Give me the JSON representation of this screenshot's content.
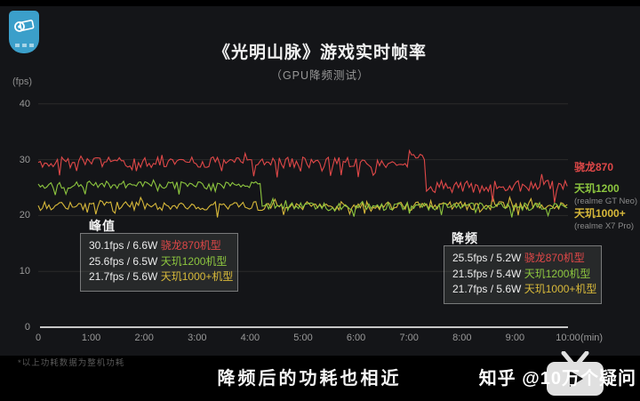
{
  "badge": {
    "icon": "camera-icon",
    "color": "#3b9fca"
  },
  "title": "《光明山脉》游戏实时帧率",
  "subtitle": "（GPU降频测试）",
  "axis": {
    "y_unit": "(fps)",
    "x_unit": "(min)"
  },
  "legend": [
    {
      "label": "骁龙870",
      "sub": "",
      "color": "#e04848"
    },
    {
      "label": "天玑1200",
      "sub": "(realme GT Neo)",
      "color": "#8dc63f"
    },
    {
      "label": "天玑1000+",
      "sub": "(realme X7 Pro)",
      "color": "#d8b93a"
    }
  ],
  "annotations": {
    "peak": {
      "title": "峰值",
      "rows": [
        {
          "metrics": "30.1fps / 6.6W ",
          "chip": "骁龙870机型",
          "color": "#e04848"
        },
        {
          "metrics": "25.6fps / 6.5W ",
          "chip": "天玑1200机型",
          "color": "#8dc63f"
        },
        {
          "metrics": "21.7fps / 5.6W ",
          "chip": "天玑1000+机型",
          "color": "#d8b93a"
        }
      ]
    },
    "throttled": {
      "title": "降频",
      "rows": [
        {
          "metrics": "25.5fps / 5.2W ",
          "chip": "骁龙870机型",
          "color": "#e04848"
        },
        {
          "metrics": "21.5fps / 5.4W ",
          "chip": "天玑1200机型",
          "color": "#8dc63f"
        },
        {
          "metrics": "21.7fps / 5.6W ",
          "chip": "天玑1000+机型",
          "color": "#d8b93a"
        }
      ]
    }
  },
  "footnote": "*以上功耗数据为整机功耗",
  "caption": "降频后的功耗也相近",
  "watermark": {
    "brand": "知乎",
    "handle": "@10万个疑问",
    "icon": "tv-icon"
  },
  "chart_data": {
    "type": "line",
    "title": "《光明山脉》游戏实时帧率",
    "subtitle": "（GPU降频测试）",
    "xlabel": "(min)",
    "ylabel": "(fps)",
    "xlim": [
      0,
      10
    ],
    "ylim": [
      0,
      40
    ],
    "x_ticks_min": [
      0,
      1,
      2,
      3,
      4,
      5,
      6,
      7,
      8,
      9,
      10
    ],
    "x_tick_labels": [
      "0",
      "1:00",
      "2:00",
      "3:00",
      "4:00",
      "5:00",
      "6:00",
      "7:00",
      "8:00",
      "9:00",
      "10:00"
    ],
    "y_ticks": [
      0,
      10,
      20,
      30,
      40
    ],
    "grid": "horizontal",
    "legend_position": "right",
    "series": [
      {
        "name": "骁龙870",
        "device": "",
        "color": "#e04848",
        "seed": 11,
        "peak_fps": 30.1,
        "peak_power_w": 6.6,
        "throttled_fps": 25.5,
        "throttled_power_w": 5.2,
        "throttle_time_min": 7.3,
        "segments": [
          {
            "from": 0,
            "to": 7.05,
            "mean": 29.5,
            "jitter": 1.0
          },
          {
            "from": 7.05,
            "to": 7.3,
            "mean": 30.7,
            "jitter": 0.3
          },
          {
            "from": 7.3,
            "to": 10,
            "mean": 25.2,
            "jitter": 1.1
          }
        ]
      },
      {
        "name": "天玑1200",
        "device": "realme GT Neo",
        "color": "#8dc63f",
        "seed": 22,
        "peak_fps": 25.6,
        "peak_power_w": 6.5,
        "throttled_fps": 21.5,
        "throttled_power_w": 5.4,
        "throttle_time_min": 4.2,
        "segments": [
          {
            "from": 0,
            "to": 4.2,
            "mean": 25.5,
            "jitter": 0.65
          },
          {
            "from": 4.2,
            "to": 10,
            "mean": 21.6,
            "jitter": 0.7
          }
        ]
      },
      {
        "name": "天玑1000+",
        "device": "realme X7 Pro",
        "color": "#d8b93a",
        "seed": 33,
        "peak_fps": 21.7,
        "peak_power_w": 5.6,
        "throttled_fps": 21.7,
        "throttled_power_w": 5.6,
        "throttle_time_min": null,
        "segments": [
          {
            "from": 0,
            "to": 10,
            "mean": 21.7,
            "jitter": 0.8
          }
        ]
      }
    ]
  }
}
